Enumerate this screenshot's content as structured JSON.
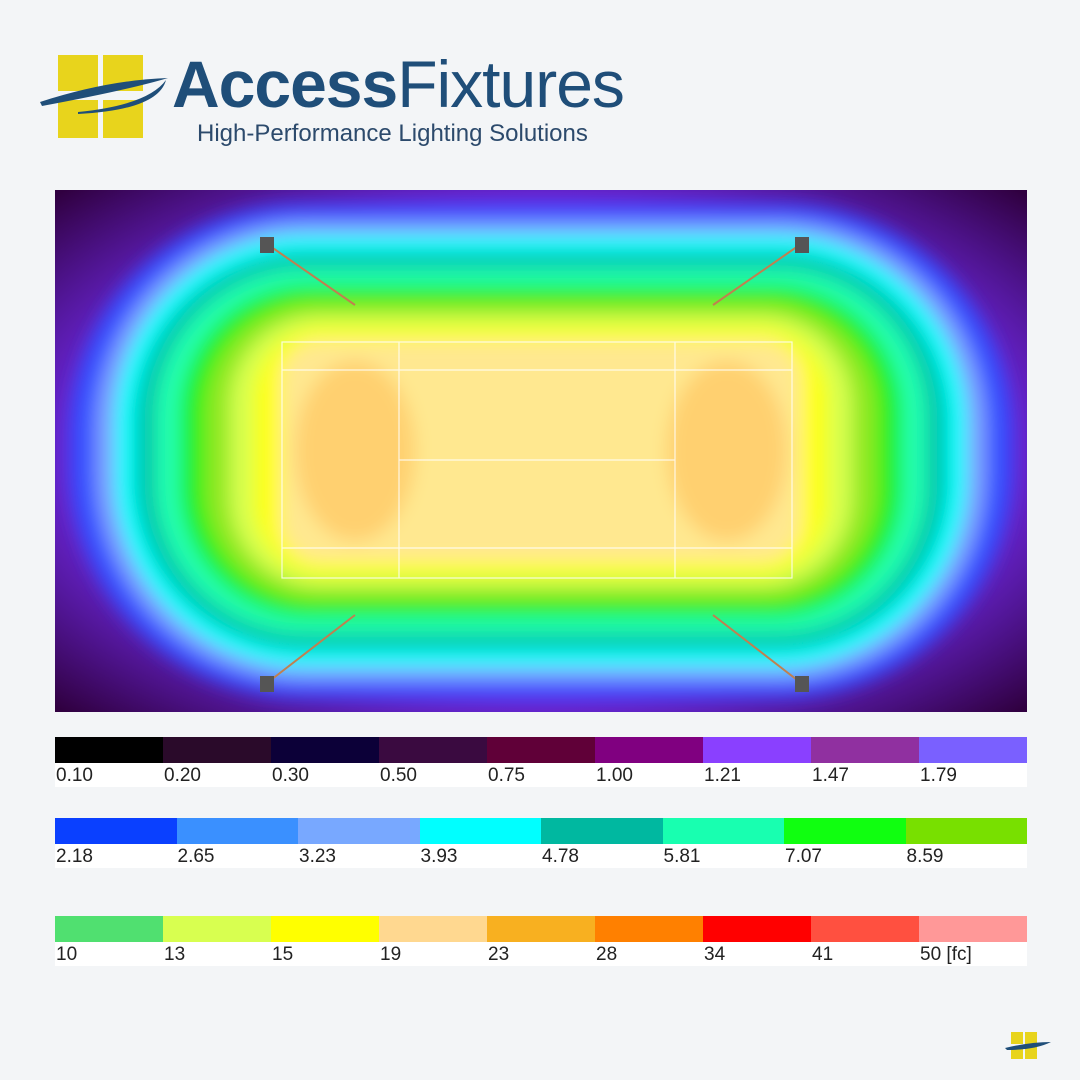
{
  "header": {
    "brand_primary": "Access",
    "brand_secondary": "Fixtures",
    "tagline": "High-Performance Lighting Solutions"
  },
  "legend": {
    "rows": [
      {
        "swatches": [
          {
            "label": "0.10",
            "color": "#000000"
          },
          {
            "label": "0.20",
            "color": "#2a0a2a"
          },
          {
            "label": "0.30",
            "color": "#0c0038"
          },
          {
            "label": "0.50",
            "color": "#3a0a40"
          },
          {
            "label": "0.75",
            "color": "#600038"
          },
          {
            "label": "1.00",
            "color": "#800080"
          },
          {
            "label": "1.21",
            "color": "#8a40ff"
          },
          {
            "label": "1.47",
            "color": "#9030a0"
          },
          {
            "label": "1.79",
            "color": "#7a60ff"
          }
        ]
      },
      {
        "swatches": [
          {
            "label": "2.18",
            "color": "#0a40ff"
          },
          {
            "label": "2.65",
            "color": "#3a90ff"
          },
          {
            "label": "3.23",
            "color": "#78a8ff"
          },
          {
            "label": "3.93",
            "color": "#00ffff"
          },
          {
            "label": "4.78",
            "color": "#00b8a0"
          },
          {
            "label": "5.81",
            "color": "#18ffb0"
          },
          {
            "label": "7.07",
            "color": "#10ff10"
          },
          {
            "label": "8.59",
            "color": "#78e000"
          }
        ]
      },
      {
        "swatches": [
          {
            "label": "10",
            "color": "#50e070"
          },
          {
            "label": "13",
            "color": "#d8ff50"
          },
          {
            "label": "15",
            "color": "#ffff00"
          },
          {
            "label": "19",
            "color": "#ffd890"
          },
          {
            "label": "23",
            "color": "#f8b020"
          },
          {
            "label": "28",
            "color": "#ff8000"
          },
          {
            "label": "34",
            "color": "#ff0000"
          },
          {
            "label": "41",
            "color": "#ff5040"
          },
          {
            "label": "50 [fc]",
            "color": "#ff9898"
          }
        ]
      }
    ]
  }
}
